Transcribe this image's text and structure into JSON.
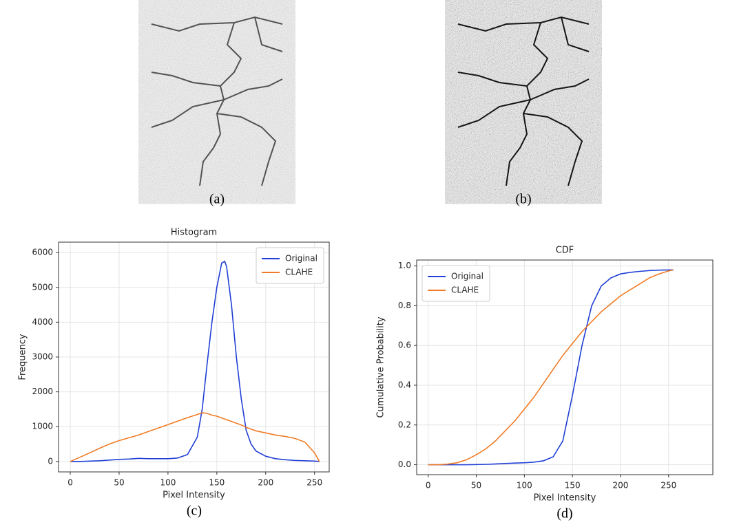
{
  "images": [
    {
      "caption": "(a)"
    },
    {
      "caption": "(b)"
    }
  ],
  "chart_data": [
    {
      "type": "line",
      "title": "Histogram",
      "x_label": "Pixel Intensity",
      "y_label": "Frequency",
      "caption": "(c)",
      "x": [
        0,
        10,
        20,
        30,
        40,
        50,
        60,
        70,
        80,
        90,
        100,
        110,
        120,
        130,
        135,
        140,
        145,
        150,
        155,
        158,
        160,
        165,
        170,
        175,
        180,
        185,
        190,
        200,
        210,
        220,
        230,
        240,
        250,
        255
      ],
      "series": [
        {
          "name": "Original",
          "color": "#1f3fd6",
          "values": [
            0,
            0,
            10,
            20,
            40,
            60,
            70,
            90,
            80,
            80,
            80,
            100,
            200,
            700,
            1500,
            2800,
            4000,
            5000,
            5700,
            5750,
            5600,
            4500,
            3000,
            1800,
            900,
            500,
            300,
            150,
            80,
            50,
            30,
            20,
            10,
            0
          ]
        },
        {
          "name": "CLAHE",
          "color": "#f07b24",
          "values": [
            0,
            120,
            250,
            380,
            500,
            600,
            680,
            760,
            860,
            960,
            1060,
            1160,
            1260,
            1350,
            1400,
            1380,
            1330,
            1300,
            1250,
            1220,
            1200,
            1150,
            1100,
            1050,
            980,
            930,
            880,
            820,
            760,
            720,
            660,
            560,
            250,
            0
          ]
        }
      ],
      "xlim": [
        -12,
        265
      ],
      "ylim": [
        -300,
        6300
      ],
      "xticks": [
        0,
        50,
        100,
        150,
        200,
        250
      ],
      "yticks": [
        0,
        1000,
        2000,
        3000,
        4000,
        5000,
        6000
      ],
      "grid": true,
      "legend": "upper-right"
    },
    {
      "type": "line",
      "title": "CDF",
      "x_label": "Pixel Intensity",
      "y_label": "Cumulative Probability",
      "caption": "(d)",
      "x": [
        0,
        10,
        20,
        30,
        40,
        50,
        60,
        70,
        80,
        90,
        100,
        110,
        120,
        130,
        140,
        150,
        160,
        170,
        180,
        190,
        200,
        210,
        220,
        230,
        240,
        250,
        255
      ],
      "series": [
        {
          "name": "Original",
          "color": "#1f3fd6",
          "values": [
            0,
            0,
            0,
            0,
            0,
            0.001,
            0.002,
            0.004,
            0.006,
            0.008,
            0.01,
            0.013,
            0.02,
            0.04,
            0.12,
            0.35,
            0.6,
            0.8,
            0.9,
            0.94,
            0.96,
            0.968,
            0.973,
            0.977,
            0.979,
            0.98,
            0.98
          ]
        },
        {
          "name": "CLAHE",
          "color": "#f07b24",
          "values": [
            0,
            0,
            0.003,
            0.01,
            0.025,
            0.05,
            0.08,
            0.12,
            0.17,
            0.22,
            0.28,
            0.34,
            0.41,
            0.48,
            0.55,
            0.61,
            0.67,
            0.72,
            0.77,
            0.81,
            0.85,
            0.88,
            0.91,
            0.94,
            0.96,
            0.975,
            0.98
          ]
        }
      ],
      "xlim": [
        -12,
        296
      ],
      "ylim": [
        -0.05,
        1.03
      ],
      "xticks": [
        0,
        50,
        100,
        150,
        200,
        250
      ],
      "yticks": [
        {
          "value": 0,
          "label": "0.0"
        },
        0.2,
        0.4,
        0.6,
        0.8,
        {
          "value": 1,
          "label": "1.0"
        }
      ],
      "grid": true,
      "legend": "upper-left"
    }
  ]
}
